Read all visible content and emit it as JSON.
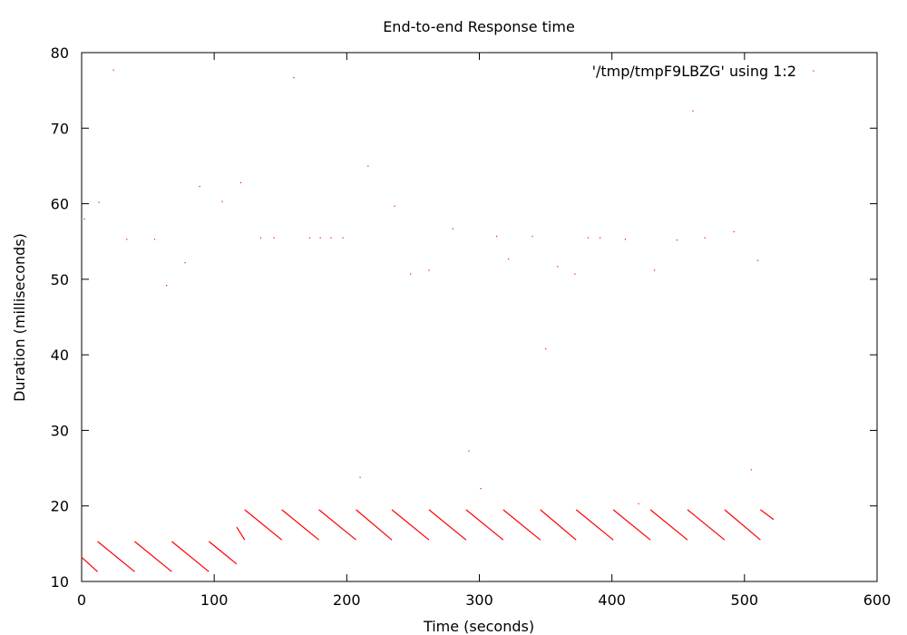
{
  "chart_data": {
    "type": "scatter",
    "title": "End-to-end Response time",
    "xlabel": "Time (seconds)",
    "ylabel": "Duration (milliseconds)",
    "xlim": [
      0,
      600
    ],
    "ylim": [
      10,
      80
    ],
    "x_ticks": [
      "0",
      "100",
      "200",
      "300",
      "400",
      "500",
      "600"
    ],
    "y_ticks": [
      "10",
      "20",
      "30",
      "40",
      "50",
      "60",
      "70",
      "80"
    ],
    "grid": false,
    "legend_position": "top-right",
    "series": [
      {
        "name": "'/tmp/tmpF9LBZG' using 1:2",
        "color": "#ff0000",
        "segments": [
          {
            "x": [
              0,
              12
            ],
            "y": [
              13.2,
              11.3
            ]
          },
          {
            "x": [
              12,
              40
            ],
            "y": [
              15.3,
              11.3
            ]
          },
          {
            "x": [
              40,
              68
            ],
            "y": [
              15.3,
              11.3
            ]
          },
          {
            "x": [
              68,
              96
            ],
            "y": [
              15.3,
              11.3
            ]
          },
          {
            "x": [
              96,
              117
            ],
            "y": [
              15.3,
              12.3
            ]
          },
          {
            "x": [
              117,
              123
            ],
            "y": [
              17.2,
              15.5
            ]
          },
          {
            "x": [
              123,
              151
            ],
            "y": [
              19.5,
              15.5
            ]
          },
          {
            "x": [
              151,
              179
            ],
            "y": [
              19.5,
              15.5
            ]
          },
          {
            "x": [
              179,
              207
            ],
            "y": [
              19.5,
              15.5
            ]
          },
          {
            "x": [
              207,
              234
            ],
            "y": [
              19.5,
              15.5
            ]
          },
          {
            "x": [
              234,
              262
            ],
            "y": [
              19.5,
              15.5
            ]
          },
          {
            "x": [
              262,
              290
            ],
            "y": [
              19.5,
              15.5
            ]
          },
          {
            "x": [
              290,
              318
            ],
            "y": [
              19.5,
              15.5
            ]
          },
          {
            "x": [
              318,
              346
            ],
            "y": [
              19.5,
              15.5
            ]
          },
          {
            "x": [
              346,
              373
            ],
            "y": [
              19.5,
              15.5
            ]
          },
          {
            "x": [
              373,
              401
            ],
            "y": [
              19.5,
              15.5
            ]
          },
          {
            "x": [
              401,
              429
            ],
            "y": [
              19.5,
              15.5
            ]
          },
          {
            "x": [
              429,
              457
            ],
            "y": [
              19.5,
              15.5
            ]
          },
          {
            "x": [
              457,
              485
            ],
            "y": [
              19.5,
              15.5
            ]
          },
          {
            "x": [
              485,
              512
            ],
            "y": [
              19.5,
              15.5
            ]
          },
          {
            "x": [
              512,
              522
            ],
            "y": [
              19.5,
              18.2
            ]
          }
        ],
        "outliers": [
          {
            "x": 2,
            "y": 58.0
          },
          {
            "x": 13,
            "y": 60.2
          },
          {
            "x": 24,
            "y": 77.7
          },
          {
            "x": 34,
            "y": 55.3
          },
          {
            "x": 55,
            "y": 55.3
          },
          {
            "x": 64,
            "y": 49.2
          },
          {
            "x": 78,
            "y": 52.2
          },
          {
            "x": 89,
            "y": 62.3
          },
          {
            "x": 106,
            "y": 60.3
          },
          {
            "x": 120,
            "y": 62.8
          },
          {
            "x": 135,
            "y": 55.5
          },
          {
            "x": 145,
            "y": 55.5
          },
          {
            "x": 160,
            "y": 76.7
          },
          {
            "x": 172,
            "y": 55.5
          },
          {
            "x": 180,
            "y": 55.5
          },
          {
            "x": 188,
            "y": 55.5
          },
          {
            "x": 197,
            "y": 55.5
          },
          {
            "x": 210,
            "y": 23.8
          },
          {
            "x": 216,
            "y": 65.0
          },
          {
            "x": 236,
            "y": 59.7
          },
          {
            "x": 248,
            "y": 50.7
          },
          {
            "x": 262,
            "y": 51.2
          },
          {
            "x": 280,
            "y": 56.7
          },
          {
            "x": 292,
            "y": 27.3
          },
          {
            "x": 301,
            "y": 22.3
          },
          {
            "x": 313,
            "y": 55.7
          },
          {
            "x": 322,
            "y": 52.7
          },
          {
            "x": 340,
            "y": 55.7
          },
          {
            "x": 350,
            "y": 40.8
          },
          {
            "x": 359,
            "y": 51.7
          },
          {
            "x": 372,
            "y": 50.7
          },
          {
            "x": 382,
            "y": 55.5
          },
          {
            "x": 391,
            "y": 55.5
          },
          {
            "x": 410,
            "y": 55.3
          },
          {
            "x": 420,
            "y": 20.3
          },
          {
            "x": 432,
            "y": 51.2
          },
          {
            "x": 449,
            "y": 55.2
          },
          {
            "x": 461,
            "y": 72.3
          },
          {
            "x": 470,
            "y": 55.5
          },
          {
            "x": 492,
            "y": 56.3
          },
          {
            "x": 505,
            "y": 24.8
          },
          {
            "x": 510,
            "y": 52.5
          },
          {
            "x": 552,
            "y": 77.6
          }
        ]
      }
    ]
  }
}
